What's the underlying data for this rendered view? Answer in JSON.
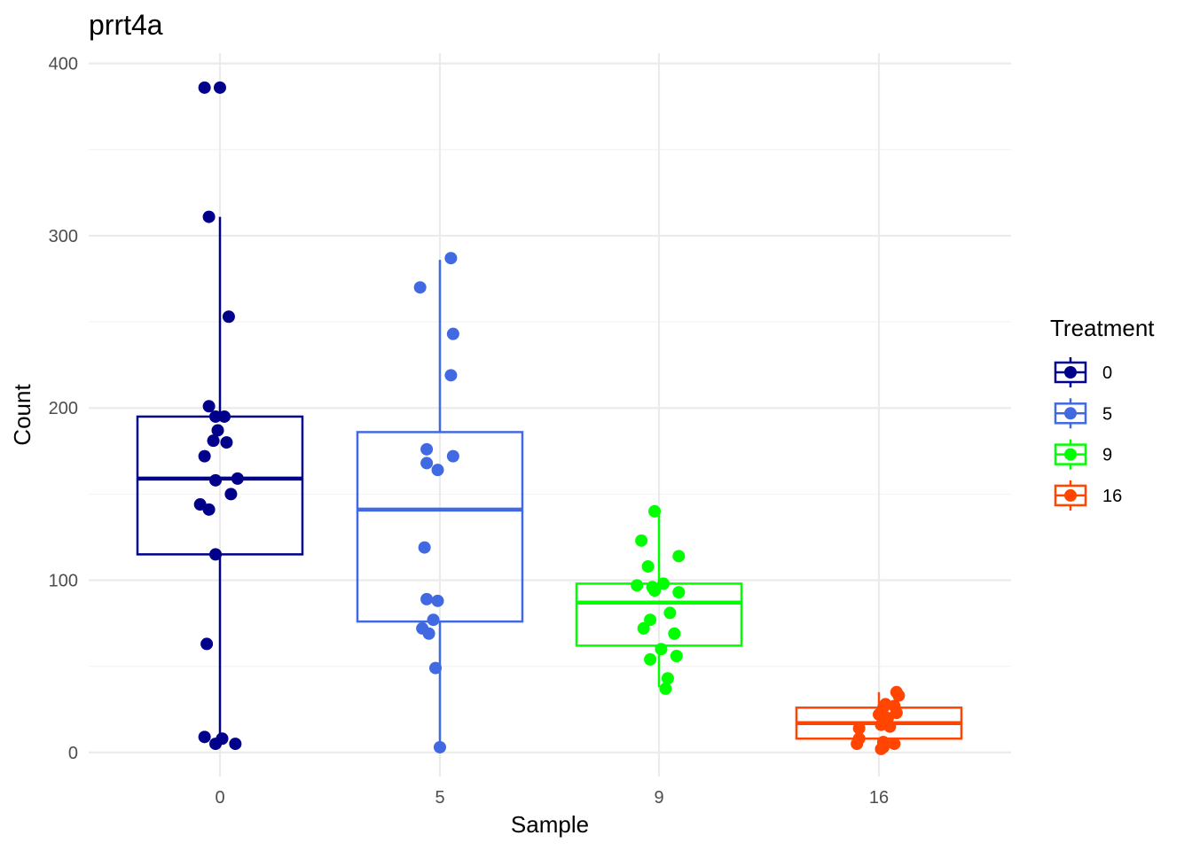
{
  "chart_data": {
    "type": "boxplot",
    "title": "prrt4a",
    "xlabel": "Sample",
    "ylabel": "Count",
    "categories": [
      "0",
      "5",
      "9",
      "16"
    ],
    "ylim": [
      -14,
      406
    ],
    "y_ticks": [
      0,
      100,
      200,
      300,
      400
    ],
    "y_tick_labels": [
      "0",
      "100",
      "200",
      "300",
      "400"
    ],
    "grid": true,
    "legend": {
      "title": "Treatment",
      "position": "right",
      "entries": [
        "0",
        "5",
        "9",
        "16"
      ]
    },
    "series": [
      {
        "name": "0",
        "color": "#00008B",
        "box": {
          "q1": 115,
          "median": 159,
          "q3": 195,
          "whisker_low": 4,
          "whisker_high": 311
        },
        "points": [
          {
            "x": -0.07,
            "y": 386
          },
          {
            "x": 0.0,
            "y": 386
          },
          {
            "x": -0.05,
            "y": 311
          },
          {
            "x": 0.04,
            "y": 253
          },
          {
            "x": -0.05,
            "y": 201
          },
          {
            "x": -0.02,
            "y": 195
          },
          {
            "x": 0.02,
            "y": 195
          },
          {
            "x": -0.01,
            "y": 187
          },
          {
            "x": -0.03,
            "y": 181
          },
          {
            "x": 0.03,
            "y": 180
          },
          {
            "x": -0.07,
            "y": 172
          },
          {
            "x": 0.08,
            "y": 159
          },
          {
            "x": -0.02,
            "y": 158
          },
          {
            "x": 0.05,
            "y": 150
          },
          {
            "x": -0.09,
            "y": 144
          },
          {
            "x": -0.05,
            "y": 141
          },
          {
            "x": -0.02,
            "y": 115
          },
          {
            "x": -0.06,
            "y": 63
          },
          {
            "x": -0.07,
            "y": 9
          },
          {
            "x": 0.01,
            "y": 8
          },
          {
            "x": 0.07,
            "y": 5
          },
          {
            "x": -0.02,
            "y": 5
          }
        ]
      },
      {
        "name": "5",
        "color": "#4169E1",
        "box": {
          "q1": 76,
          "median": 141,
          "q3": 186,
          "whisker_low": 3,
          "whisker_high": 286
        },
        "points": [
          {
            "x": 0.05,
            "y": 287
          },
          {
            "x": -0.09,
            "y": 270
          },
          {
            "x": 0.06,
            "y": 243
          },
          {
            "x": 0.05,
            "y": 219
          },
          {
            "x": -0.06,
            "y": 176
          },
          {
            "x": 0.06,
            "y": 172
          },
          {
            "x": -0.06,
            "y": 168
          },
          {
            "x": -0.01,
            "y": 164
          },
          {
            "x": -0.07,
            "y": 119
          },
          {
            "x": -0.06,
            "y": 89
          },
          {
            "x": -0.01,
            "y": 88
          },
          {
            "x": -0.03,
            "y": 77
          },
          {
            "x": -0.08,
            "y": 72
          },
          {
            "x": -0.05,
            "y": 69
          },
          {
            "x": -0.02,
            "y": 49
          },
          {
            "x": 0.0,
            "y": 3
          }
        ]
      },
      {
        "name": "9",
        "color": "#00FF00",
        "box": {
          "q1": 62,
          "median": 87,
          "q3": 98,
          "whisker_low": 38,
          "whisker_high": 140
        },
        "points": [
          {
            "x": -0.02,
            "y": 140
          },
          {
            "x": -0.08,
            "y": 123
          },
          {
            "x": 0.09,
            "y": 114
          },
          {
            "x": -0.05,
            "y": 108
          },
          {
            "x": 0.02,
            "y": 98
          },
          {
            "x": -0.1,
            "y": 97
          },
          {
            "x": -0.03,
            "y": 96
          },
          {
            "x": -0.02,
            "y": 94
          },
          {
            "x": 0.09,
            "y": 93
          },
          {
            "x": 0.05,
            "y": 81
          },
          {
            "x": -0.04,
            "y": 77
          },
          {
            "x": -0.07,
            "y": 72
          },
          {
            "x": 0.07,
            "y": 69
          },
          {
            "x": 0.01,
            "y": 60
          },
          {
            "x": 0.08,
            "y": 56
          },
          {
            "x": -0.04,
            "y": 54
          },
          {
            "x": 0.04,
            "y": 43
          },
          {
            "x": 0.03,
            "y": 37
          }
        ]
      },
      {
        "name": "16",
        "color": "#FF4500",
        "box": {
          "q1": 8,
          "median": 17,
          "q3": 26,
          "whisker_low": 2,
          "whisker_high": 35
        },
        "points": [
          {
            "x": 0.08,
            "y": 35
          },
          {
            "x": 0.09,
            "y": 33
          },
          {
            "x": 0.03,
            "y": 28
          },
          {
            "x": 0.07,
            "y": 27
          },
          {
            "x": 0.02,
            "y": 26
          },
          {
            "x": 0.08,
            "y": 23
          },
          {
            "x": 0.0,
            "y": 22
          },
          {
            "x": 0.04,
            "y": 20
          },
          {
            "x": 0.01,
            "y": 16
          },
          {
            "x": 0.05,
            "y": 15
          },
          {
            "x": -0.09,
            "y": 14
          },
          {
            "x": -0.09,
            "y": 8
          },
          {
            "x": 0.02,
            "y": 6
          },
          {
            "x": 0.07,
            "y": 5
          },
          {
            "x": -0.1,
            "y": 5
          },
          {
            "x": 0.02,
            "y": 3
          },
          {
            "x": 0.01,
            "y": 2
          }
        ]
      }
    ]
  }
}
